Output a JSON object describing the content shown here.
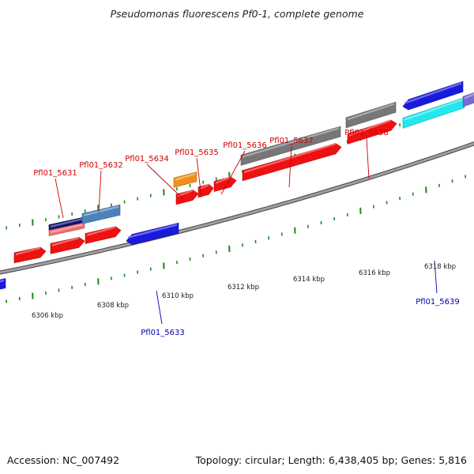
{
  "header": {
    "title": "Pseudomonas fluorescens Pf0-1, complete genome"
  },
  "footer": {
    "accession": "Accession: NC_007492",
    "summary": "Topology: circular; Length: 6,438,405 bp; Genes: 5,816"
  },
  "colors": {
    "forward_gene": "#ee1111",
    "reverse_gene": "#1a1add",
    "feature_gray": "#777777",
    "feature_orange": "#f0901a",
    "feature_cyan": "#22e8ee",
    "feature_steelblue": "#4a82bb",
    "feature_navy": "#101070",
    "feature_salmon": "#f07070",
    "feature_lavender": "#7a6ad8",
    "forward_label": "#cc0000",
    "reverse_label": "#0000aa",
    "tick": "#1a8a1a",
    "backbone": "#8a8a8a"
  },
  "ruler": {
    "labels": [
      "6306 kbp",
      "6308 kbp",
      "6310 kbp",
      "6312 kbp",
      "6314 kbp",
      "6316 kbp",
      "6318 kbp"
    ]
  },
  "genes": {
    "forward": [
      "Pfl01_5631",
      "Pfl01_5632",
      "Pfl01_5634",
      "Pfl01_5635",
      "Pfl01_5636",
      "Pfl01_5637",
      "Pfl01_5638"
    ],
    "reverse": [
      "Pfl01_5633",
      "Pfl01_5639"
    ]
  }
}
